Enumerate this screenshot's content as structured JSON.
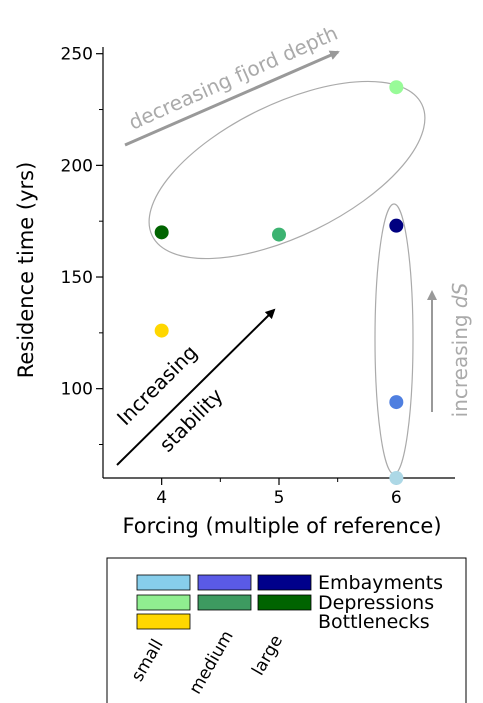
{
  "chart_data": {
    "type": "scatter",
    "xlabel": "Forcing (multiple of reference)",
    "ylabel": "Residence time (yrs)",
    "xlim": [
      3.5,
      6.5
    ],
    "ylim": [
      60,
      253
    ],
    "x_ticks": [
      4,
      5,
      6
    ],
    "y_ticks": [
      100,
      150,
      200,
      250
    ],
    "grid": false,
    "points": [
      {
        "x": 4,
        "y": 126,
        "color": "#FFD700",
        "group": "Bottlenecks small"
      },
      {
        "x": 4,
        "y": 170,
        "color": "#006400",
        "group": "Depressions large"
      },
      {
        "x": 5,
        "y": 169,
        "color": "#3CB371",
        "group": "Depressions medium"
      },
      {
        "x": 6,
        "y": 235,
        "color": "#98FB98",
        "group": "Depressions small"
      },
      {
        "x": 6,
        "y": 173,
        "color": "#000080",
        "group": "Embayments large"
      },
      {
        "x": 6,
        "y": 94,
        "color": "#4F7FE0",
        "group": "Embayments medium"
      },
      {
        "x": 6,
        "y": 60,
        "color": "#ADD8E6",
        "group": "Embayments small"
      }
    ],
    "annotations": {
      "stability_line1": "Increasing",
      "stability_line2": "stability",
      "fjord_depth": "decreasing fjord depth",
      "salinity_prefix": "increasing ",
      "salinity_symbol": "dS"
    },
    "legend": {
      "rows": [
        {
          "label": "Embayments",
          "colors": [
            "#87CEEB",
            "#5A5AE6",
            "#00008B"
          ]
        },
        {
          "label": "Depressions",
          "colors": [
            "#90EE90",
            "#3D9A60",
            "#006400"
          ]
        },
        {
          "label": "Bottlenecks",
          "colors": [
            "#FFD700"
          ]
        }
      ],
      "size_labels": [
        "small",
        "medium",
        "large"
      ]
    }
  }
}
